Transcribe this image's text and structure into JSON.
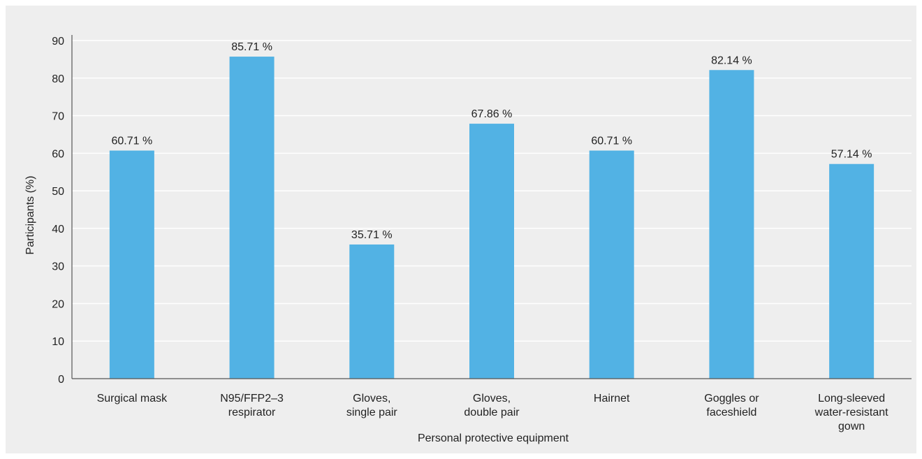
{
  "chart_data": {
    "type": "bar",
    "xlabel": "Personal protective equipment",
    "ylabel": "Participants (%)",
    "ylim": [
      0,
      90
    ],
    "yticks": [
      0,
      10,
      20,
      30,
      40,
      50,
      60,
      70,
      80,
      90
    ],
    "grid": true,
    "categories": [
      [
        "Surgical mask"
      ],
      [
        "N95/FFP2–3",
        "respirator"
      ],
      [
        "Gloves,",
        "single pair"
      ],
      [
        "Gloves,",
        "double pair"
      ],
      [
        "Hairnet"
      ],
      [
        "Goggles or",
        "faceshield"
      ],
      [
        "Long-sleeved",
        "water-resistant",
        "gown"
      ]
    ],
    "values": [
      60.71,
      85.71,
      35.71,
      67.86,
      60.71,
      82.14,
      57.14
    ],
    "data_labels": [
      "60.71 %",
      "85.71 %",
      "35.71 %",
      "67.86 %",
      "60.71 %",
      "82.14 %",
      "57.14 %"
    ],
    "bar_color": "#52b2e4",
    "grid_color": "#ffffff",
    "axis_color": "#555555"
  }
}
